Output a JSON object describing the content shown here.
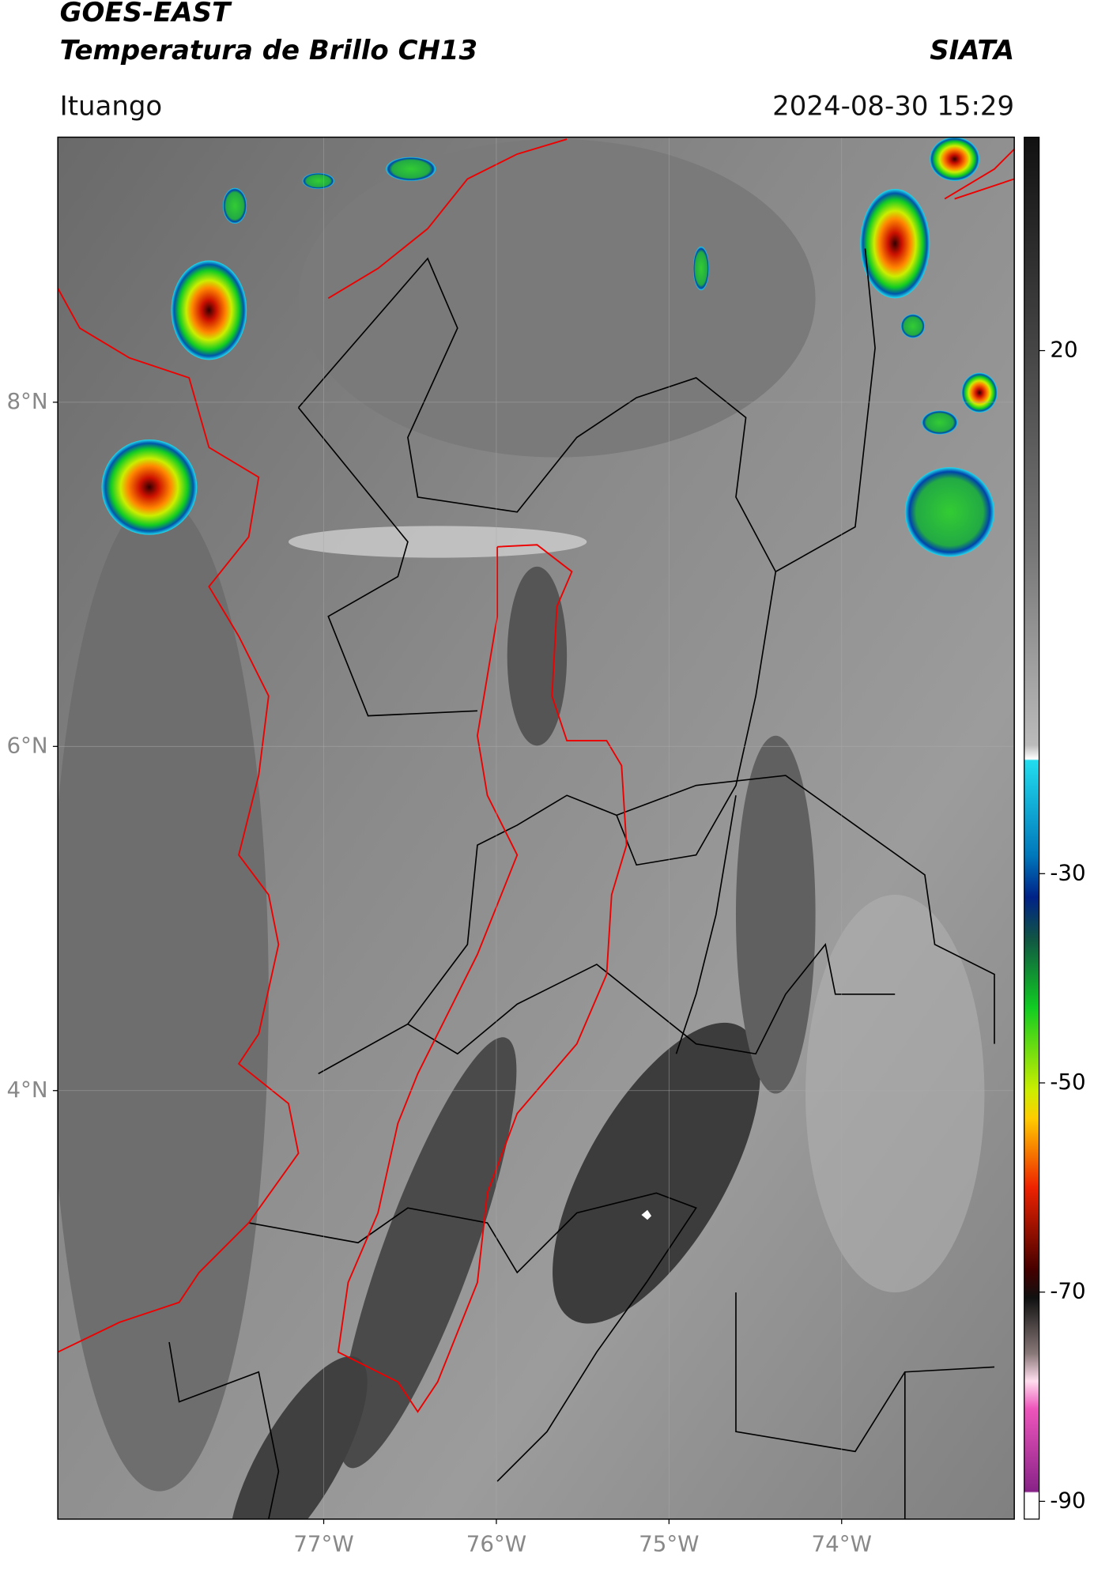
{
  "header": {
    "title": "GOES-EAST",
    "subtitle": "Temperatura de Brillo CH13",
    "source": "SIATA",
    "region": "Ituango",
    "datetime": "2024-08-30 15:29"
  },
  "map": {
    "xlim": [
      -78.54,
      -73.0
    ],
    "ylim": [
      1.51,
      9.54
    ],
    "xticks": [
      {
        "value": -77,
        "label": "77°W"
      },
      {
        "value": -76,
        "label": "76°W"
      },
      {
        "value": -75,
        "label": "75°W"
      },
      {
        "value": -74,
        "label": "74°W"
      }
    ],
    "yticks": [
      {
        "value": 8,
        "label": "8°N"
      },
      {
        "value": 6,
        "label": "6°N"
      },
      {
        "value": 4,
        "label": "4°N"
      }
    ],
    "grid": true
  },
  "colorbar": {
    "lim": [
      -91.7,
      40.4
    ],
    "ticks": [
      20,
      -30,
      -50,
      -70,
      -90
    ]
  }
}
